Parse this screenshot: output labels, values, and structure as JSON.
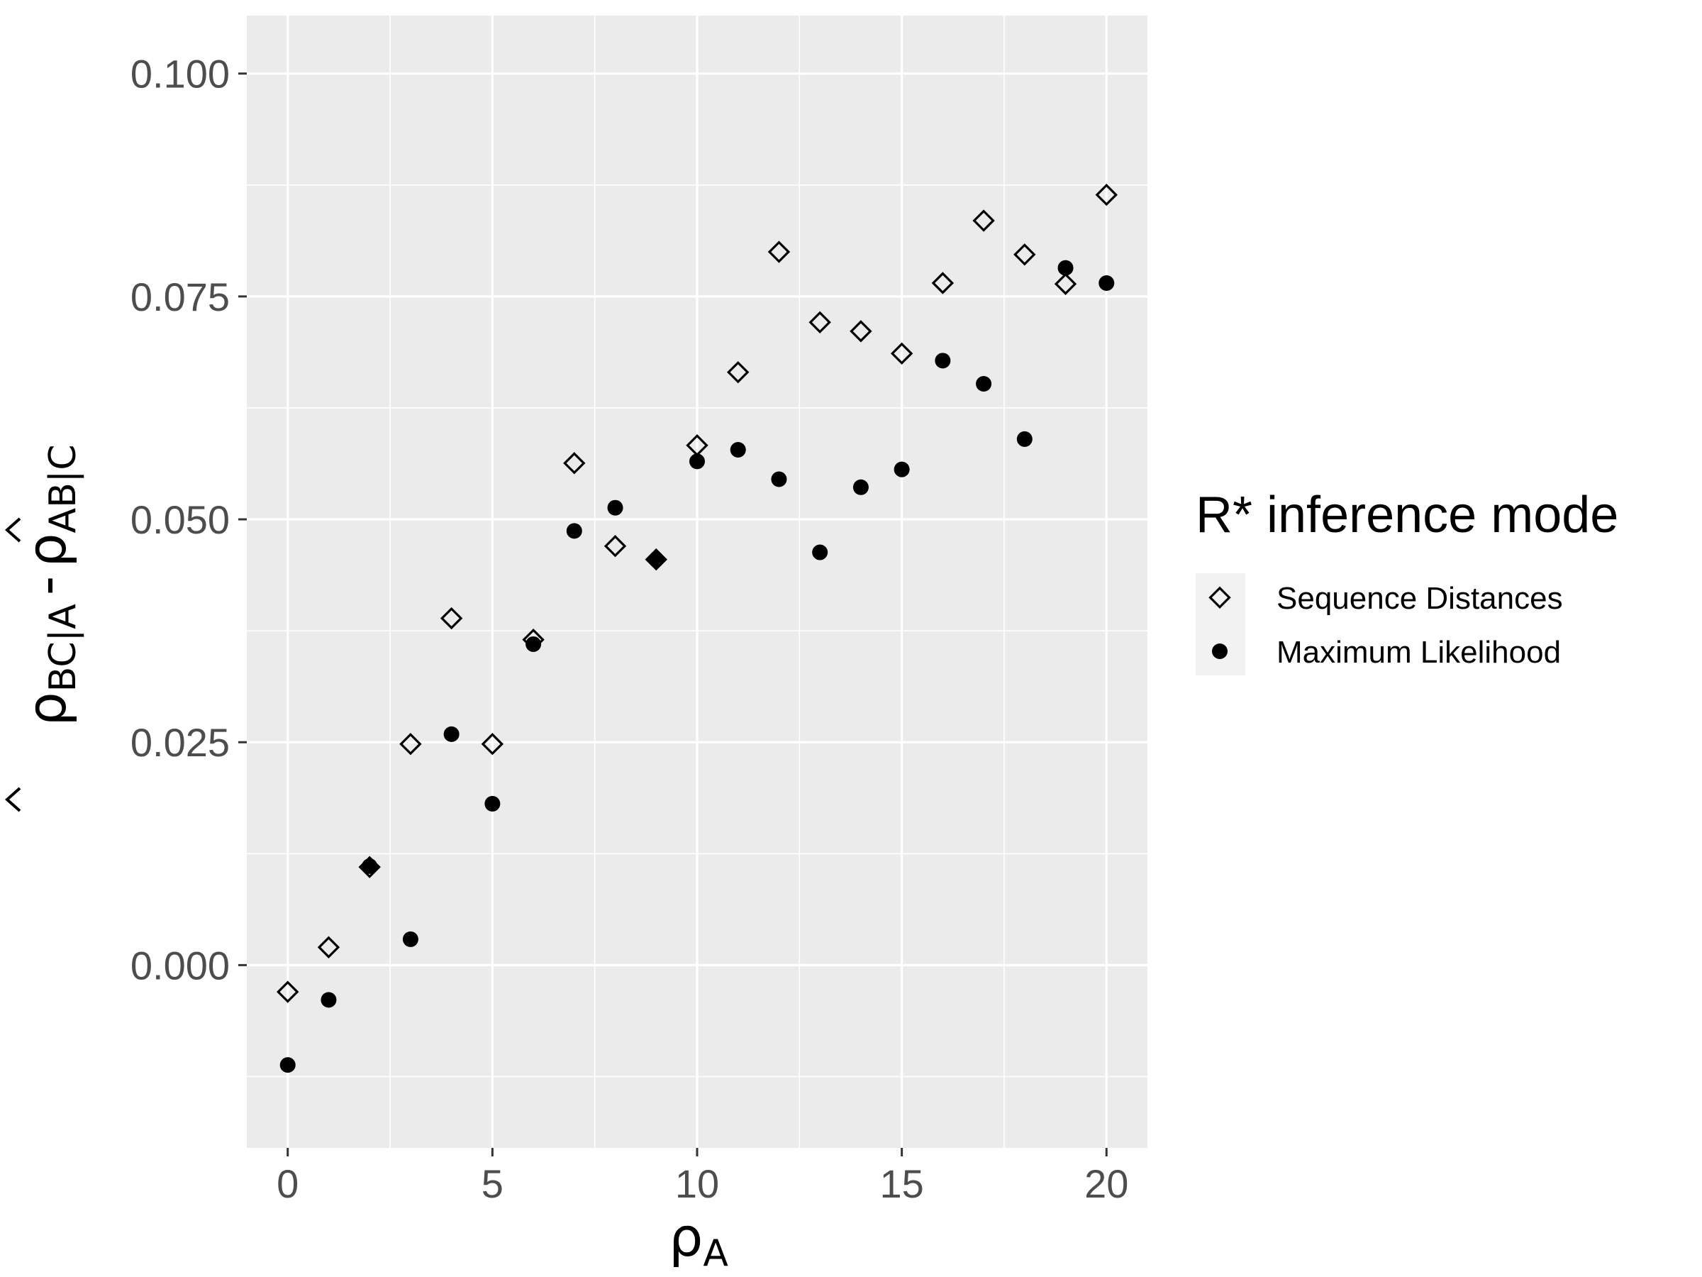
{
  "chart_data": {
    "type": "scatter",
    "title": "",
    "xlabel": {
      "base": "ρ",
      "sub": "A"
    },
    "ylabel": {
      "term1": {
        "base": "ρ",
        "sub": "BC|A"
      },
      "operator": "-",
      "term2": {
        "base": "ρ",
        "sub": "AB|C"
      }
    },
    "x_ticks": [
      "0",
      "5",
      "10",
      "15",
      "20"
    ],
    "y_ticks": [
      "0.000",
      "0.025",
      "0.050",
      "0.075",
      "0.100"
    ],
    "xlim": [
      -1,
      21
    ],
    "ylim": [
      -0.0205,
      0.1065
    ],
    "grid": true,
    "panel_background": "#ebebeb",
    "grid_color": "#ffffff",
    "legend": {
      "title": "R* inference mode",
      "placement": "right"
    },
    "series": [
      {
        "name": "Sequence Distances",
        "marker": "diamond-open",
        "color": "#000000",
        "x": [
          0,
          1,
          2,
          3,
          4,
          5,
          6,
          7,
          8,
          9,
          10,
          11,
          12,
          13,
          14,
          15,
          16,
          17,
          18,
          19,
          20
        ],
        "y": [
          -0.003,
          0.002,
          0.011,
          0.0248,
          0.0389,
          0.0248,
          0.0365,
          0.0563,
          0.047,
          0.0455,
          0.0583,
          0.0665,
          0.08,
          0.0721,
          0.0711,
          0.0686,
          0.0765,
          0.0835,
          0.0797,
          0.0764,
          0.0864
        ]
      },
      {
        "name": "Maximum Likelihood",
        "marker": "circle-filled",
        "color": "#000000",
        "x": [
          0,
          1,
          2,
          3,
          4,
          5,
          6,
          7,
          8,
          9,
          10,
          11,
          12,
          13,
          14,
          15,
          16,
          17,
          18,
          19,
          20
        ],
        "y": [
          -0.0112,
          -0.0039,
          0.0111,
          0.0029,
          0.0259,
          0.0181,
          0.036,
          0.0487,
          0.0513,
          0.0455,
          0.0565,
          0.0578,
          0.0545,
          0.0463,
          0.0536,
          0.0556,
          0.0678,
          0.0652,
          0.059,
          0.0782,
          0.0765
        ]
      }
    ]
  }
}
